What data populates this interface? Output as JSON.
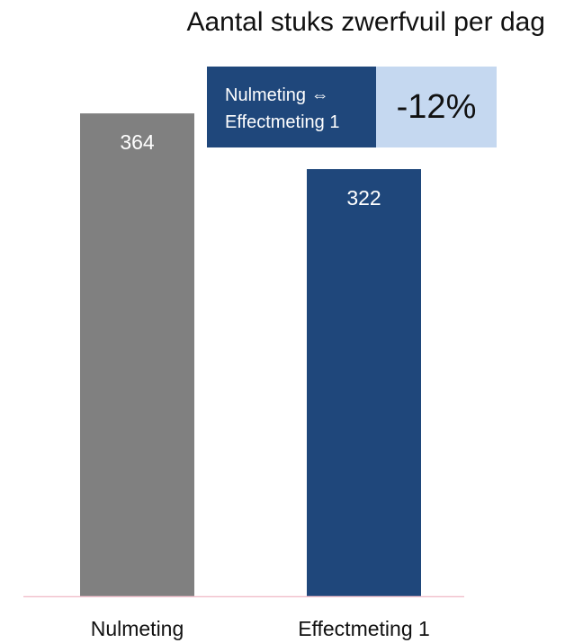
{
  "chart_data": {
    "type": "bar",
    "title": "Aantal stuks zwerfvuil per dag",
    "categories": [
      "Nulmeting",
      "Effectmeting 1"
    ],
    "values": [
      364,
      322
    ],
    "colors": [
      "#808080",
      "#1f477b"
    ],
    "axis_line_color": "#f2c4cf",
    "ylim": [
      0,
      420
    ],
    "xlabel": "",
    "ylabel": "",
    "grid": false
  },
  "comparison": {
    "line1": "Nulmeting ⇔",
    "line2": "Effectmeting 1",
    "value": "-12%",
    "label_bg": "#1f477b",
    "value_bg": "#c5d8f0"
  }
}
